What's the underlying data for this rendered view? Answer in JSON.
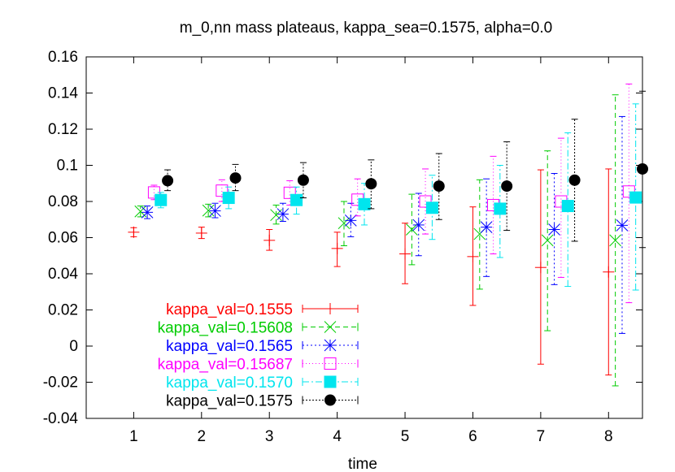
{
  "chart_data": {
    "type": "scatter",
    "title": "m_0,nn mass plateaus, kappa_sea=0.1575, alpha=0.0",
    "xlabel": "time",
    "ylabel": "",
    "xlim": [
      0.3,
      8.5
    ],
    "ylim": [
      -0.04,
      0.16
    ],
    "xticks": [
      "1",
      "2",
      "3",
      "4",
      "5",
      "6",
      "7",
      "8"
    ],
    "yticks": [
      "-0.04",
      "-0.02",
      "0",
      "0.02",
      "0.04",
      "0.06",
      "0.08",
      "0.1",
      "0.12",
      "0.14",
      "0.16"
    ],
    "legend_position": "bottom-left",
    "series": [
      {
        "name": "kappa_val=0.1555",
        "color": "#ff0000",
        "marker": "plus",
        "dash": "solid",
        "points": [
          {
            "x": 1.0,
            "y": 0.063,
            "lo": 0.0605,
            "hi": 0.0655
          },
          {
            "x": 2.0,
            "y": 0.0625,
            "lo": 0.0595,
            "hi": 0.0658
          },
          {
            "x": 3.0,
            "y": 0.0585,
            "lo": 0.053,
            "hi": 0.0645
          },
          {
            "x": 4.0,
            "y": 0.054,
            "lo": 0.044,
            "hi": 0.063
          },
          {
            "x": 5.0,
            "y": 0.051,
            "lo": 0.0345,
            "hi": 0.068
          },
          {
            "x": 6.0,
            "y": 0.0495,
            "lo": 0.0225,
            "hi": 0.077
          },
          {
            "x": 7.0,
            "y": 0.0435,
            "lo": -0.01,
            "hi": 0.0975
          },
          {
            "x": 8.0,
            "y": 0.041,
            "lo": -0.016,
            "hi": 0.098
          }
        ]
      },
      {
        "name": "kappa_val=0.15608",
        "color": "#00cc00",
        "marker": "cross",
        "dash": "6,4",
        "points": [
          {
            "x": 1.1,
            "y": 0.0745,
            "lo": 0.0715,
            "hi": 0.0775
          },
          {
            "x": 2.1,
            "y": 0.075,
            "lo": 0.0715,
            "hi": 0.0785
          },
          {
            "x": 3.1,
            "y": 0.0725,
            "lo": 0.0675,
            "hi": 0.078
          },
          {
            "x": 4.1,
            "y": 0.068,
            "lo": 0.0555,
            "hi": 0.08
          },
          {
            "x": 5.1,
            "y": 0.0645,
            "lo": 0.045,
            "hi": 0.084
          },
          {
            "x": 6.1,
            "y": 0.062,
            "lo": 0.0315,
            "hi": 0.092
          },
          {
            "x": 7.1,
            "y": 0.0585,
            "lo": 0.0085,
            "hi": 0.108
          },
          {
            "x": 8.1,
            "y": 0.0585,
            "lo": -0.022,
            "hi": 0.139
          }
        ]
      },
      {
        "name": "kappa_val=0.1565",
        "color": "#0000ff",
        "marker": "star",
        "dash": "2,3",
        "points": [
          {
            "x": 1.2,
            "y": 0.074,
            "lo": 0.0705,
            "hi": 0.0775
          },
          {
            "x": 2.2,
            "y": 0.0748,
            "lo": 0.071,
            "hi": 0.079
          },
          {
            "x": 3.2,
            "y": 0.073,
            "lo": 0.069,
            "hi": 0.079
          },
          {
            "x": 4.2,
            "y": 0.0695,
            "lo": 0.0605,
            "hi": 0.079
          },
          {
            "x": 5.2,
            "y": 0.067,
            "lo": 0.05,
            "hi": 0.0845
          },
          {
            "x": 6.2,
            "y": 0.0658,
            "lo": 0.0385,
            "hi": 0.0925
          },
          {
            "x": 7.2,
            "y": 0.0645,
            "lo": 0.034,
            "hi": 0.0955
          },
          {
            "x": 8.2,
            "y": 0.0668,
            "lo": 0.007,
            "hi": 0.127
          }
        ]
      },
      {
        "name": "kappa_val=0.15687",
        "color": "#ff00ff",
        "marker": "open-square",
        "dash": "1,3",
        "points": [
          {
            "x": 1.3,
            "y": 0.085,
            "lo": 0.081,
            "hi": 0.089
          },
          {
            "x": 2.3,
            "y": 0.086,
            "lo": 0.08,
            "hi": 0.092
          },
          {
            "x": 3.3,
            "y": 0.0848,
            "lo": 0.078,
            "hi": 0.0915
          },
          {
            "x": 4.3,
            "y": 0.081,
            "lo": 0.072,
            "hi": 0.0925
          },
          {
            "x": 5.3,
            "y": 0.08,
            "lo": 0.062,
            "hi": 0.098
          },
          {
            "x": 6.3,
            "y": 0.078,
            "lo": 0.051,
            "hi": 0.105
          },
          {
            "x": 7.3,
            "y": 0.08,
            "lo": 0.038,
            "hi": 0.115
          },
          {
            "x": 8.3,
            "y": 0.0855,
            "lo": 0.024,
            "hi": 0.145
          }
        ]
      },
      {
        "name": "kappa_val=0.1570",
        "color": "#00e5ee",
        "marker": "filled-square",
        "dash": "8,3,2,3",
        "points": [
          {
            "x": 1.4,
            "y": 0.0808,
            "lo": 0.0765,
            "hi": 0.085
          },
          {
            "x": 2.4,
            "y": 0.082,
            "lo": 0.076,
            "hi": 0.088
          },
          {
            "x": 3.4,
            "y": 0.0808,
            "lo": 0.073,
            "hi": 0.088
          },
          {
            "x": 4.4,
            "y": 0.0785,
            "lo": 0.067,
            "hi": 0.09
          },
          {
            "x": 5.4,
            "y": 0.0765,
            "lo": 0.059,
            "hi": 0.0945
          },
          {
            "x": 6.4,
            "y": 0.076,
            "lo": 0.049,
            "hi": 0.1
          },
          {
            "x": 7.4,
            "y": 0.0775,
            "lo": 0.033,
            "hi": 0.118
          },
          {
            "x": 8.4,
            "y": 0.0822,
            "lo": 0.031,
            "hi": 0.134
          }
        ]
      },
      {
        "name": "kappa_val=0.1575",
        "color": "#000000",
        "marker": "filled-circle",
        "dash": "2,2",
        "points": [
          {
            "x": 1.5,
            "y": 0.0915,
            "lo": 0.086,
            "hi": 0.0975
          },
          {
            "x": 2.5,
            "y": 0.093,
            "lo": 0.086,
            "hi": 0.1005
          },
          {
            "x": 3.5,
            "y": 0.0918,
            "lo": 0.082,
            "hi": 0.1015
          },
          {
            "x": 4.5,
            "y": 0.0898,
            "lo": 0.076,
            "hi": 0.103
          },
          {
            "x": 5.5,
            "y": 0.0885,
            "lo": 0.07,
            "hi": 0.1065
          },
          {
            "x": 6.5,
            "y": 0.0885,
            "lo": 0.064,
            "hi": 0.113
          },
          {
            "x": 7.5,
            "y": 0.0918,
            "lo": 0.058,
            "hi": 0.1255
          },
          {
            "x": 8.5,
            "y": 0.098,
            "lo": 0.0545,
            "hi": 0.141
          }
        ]
      }
    ]
  }
}
